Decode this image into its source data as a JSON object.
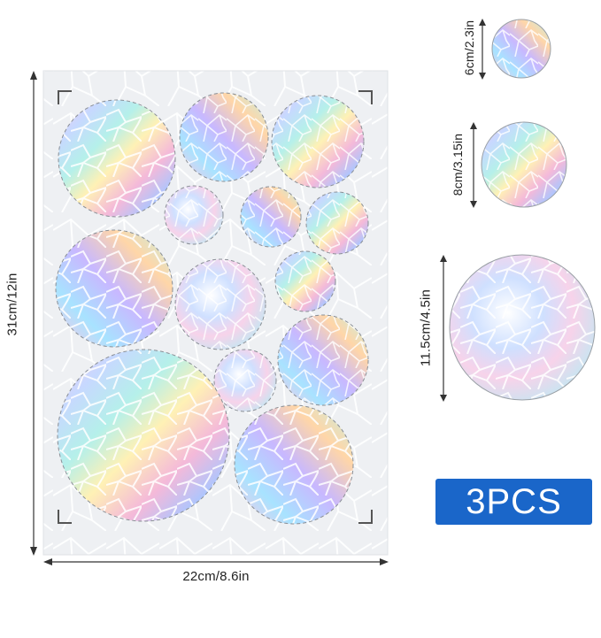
{
  "dimensions": {
    "sheet_height": "31cm/12in",
    "sheet_width": "22cm/8.6in",
    "small": "6cm/2.3in",
    "medium": "8cm/3.15in",
    "large": "11.5cm/4.5in"
  },
  "badge": "3PCS",
  "colors": {
    "badge_bg": "#1a66c9",
    "badge_text": "#ffffff",
    "sheet_bg": "#f0f1f3",
    "arrow": "#333333"
  }
}
